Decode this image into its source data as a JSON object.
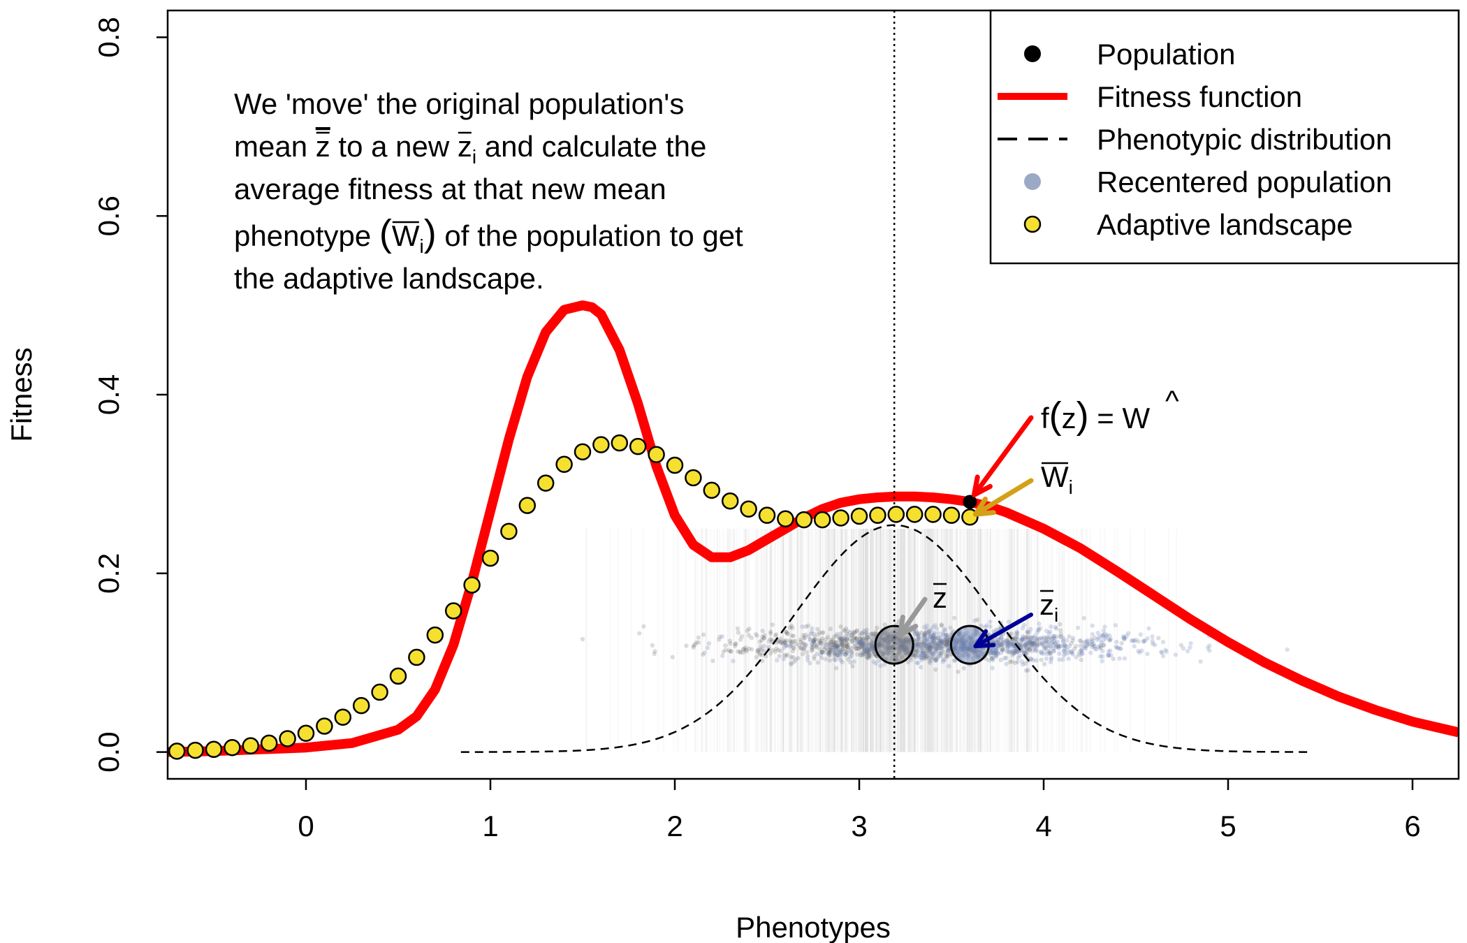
{
  "chart_data": {
    "type": "line",
    "xlabel": "Phenotypes",
    "ylabel": "Fitness",
    "xlim": [
      -0.75,
      6.25
    ],
    "ylim": [
      -0.03,
      0.83
    ],
    "x_ticks": [
      "0",
      "1",
      "2",
      "3",
      "4",
      "5",
      "6"
    ],
    "y_ticks": [
      "0.0",
      "0.2",
      "0.4",
      "0.6",
      "0.8"
    ],
    "grid": false,
    "legend_position": "top-right",
    "legend": [
      {
        "label": "Population",
        "marker": "filled-circle",
        "color": "#000000"
      },
      {
        "label": "Fitness function",
        "marker": "thick-line",
        "color": "#ff0000"
      },
      {
        "label": "Phenotypic distribution",
        "marker": "dashed-line",
        "color": "#000000"
      },
      {
        "label": "Recentered population",
        "marker": "filled-circle",
        "color": "#8b9abb"
      },
      {
        "label": "Adaptive landscape",
        "marker": "circle-outlined",
        "color": "#f5e030"
      }
    ],
    "annotation": {
      "line1": "We 'move' the original population's",
      "line2_a": "mean ",
      "line2_b": " to a new ",
      "line2_c": " and calculate the",
      "line3": "average fitness at that new mean",
      "line4_a": "phenotype ",
      "line4_b": " of the population to get",
      "line5": "the adaptive landscape."
    },
    "math_labels": {
      "z": "z",
      "i": "i",
      "W": "W",
      "f": "f",
      "equals": "=",
      "hat": "^",
      "paren_open": "(",
      "paren_close": ")"
    },
    "original_mean": 3.19,
    "recentered_mean": 3.6,
    "population_marker_y": 0.12,
    "fitness_function": {
      "color": "#ff0000",
      "x": [
        -0.75,
        -0.5,
        -0.25,
        0,
        0.25,
        0.5,
        0.6,
        0.7,
        0.8,
        0.9,
        1.0,
        1.1,
        1.2,
        1.3,
        1.4,
        1.5,
        1.55,
        1.6,
        1.7,
        1.8,
        1.9,
        2.0,
        2.1,
        2.2,
        2.3,
        2.4,
        2.5,
        2.6,
        2.7,
        2.8,
        2.9,
        3.0,
        3.1,
        3.2,
        3.3,
        3.4,
        3.5,
        3.6,
        3.7,
        3.8,
        4.0,
        4.2,
        4.4,
        4.6,
        4.8,
        5.0,
        5.2,
        5.4,
        5.6,
        5.8,
        6.0,
        6.25
      ],
      "y": [
        0.0,
        0.001,
        0.003,
        0.005,
        0.01,
        0.025,
        0.04,
        0.07,
        0.12,
        0.19,
        0.27,
        0.35,
        0.42,
        0.47,
        0.495,
        0.5,
        0.498,
        0.49,
        0.45,
        0.39,
        0.32,
        0.265,
        0.232,
        0.218,
        0.218,
        0.226,
        0.238,
        0.25,
        0.262,
        0.272,
        0.279,
        0.283,
        0.285,
        0.286,
        0.286,
        0.285,
        0.283,
        0.28,
        0.275,
        0.268,
        0.25,
        0.228,
        0.202,
        0.175,
        0.148,
        0.123,
        0.1,
        0.08,
        0.062,
        0.047,
        0.034,
        0.022
      ]
    },
    "adaptive_landscape": {
      "color": "#f5e030",
      "x": [
        -0.7,
        -0.6,
        -0.5,
        -0.4,
        -0.3,
        -0.2,
        -0.1,
        0.0,
        0.1,
        0.2,
        0.3,
        0.4,
        0.5,
        0.6,
        0.7,
        0.8,
        0.9,
        1.0,
        1.1,
        1.2,
        1.3,
        1.4,
        1.5,
        1.6,
        1.7,
        1.8,
        1.9,
        2.0,
        2.1,
        2.2,
        2.3,
        2.4,
        2.5,
        2.6,
        2.7,
        2.8,
        2.9,
        3.0,
        3.1,
        3.2,
        3.3,
        3.4,
        3.5,
        3.6
      ],
      "y": [
        0.001,
        0.002,
        0.003,
        0.005,
        0.007,
        0.01,
        0.015,
        0.021,
        0.029,
        0.039,
        0.052,
        0.067,
        0.085,
        0.106,
        0.131,
        0.158,
        0.187,
        0.217,
        0.247,
        0.276,
        0.301,
        0.322,
        0.336,
        0.344,
        0.346,
        0.342,
        0.333,
        0.321,
        0.307,
        0.293,
        0.281,
        0.272,
        0.265,
        0.261,
        0.26,
        0.26,
        0.262,
        0.264,
        0.265,
        0.266,
        0.266,
        0.266,
        0.265,
        0.263
      ]
    },
    "phenotypic_distribution": {
      "mean": 3.19,
      "sd": 0.54,
      "peak": 0.254,
      "xrange": [
        0.84,
        5.45
      ]
    }
  }
}
